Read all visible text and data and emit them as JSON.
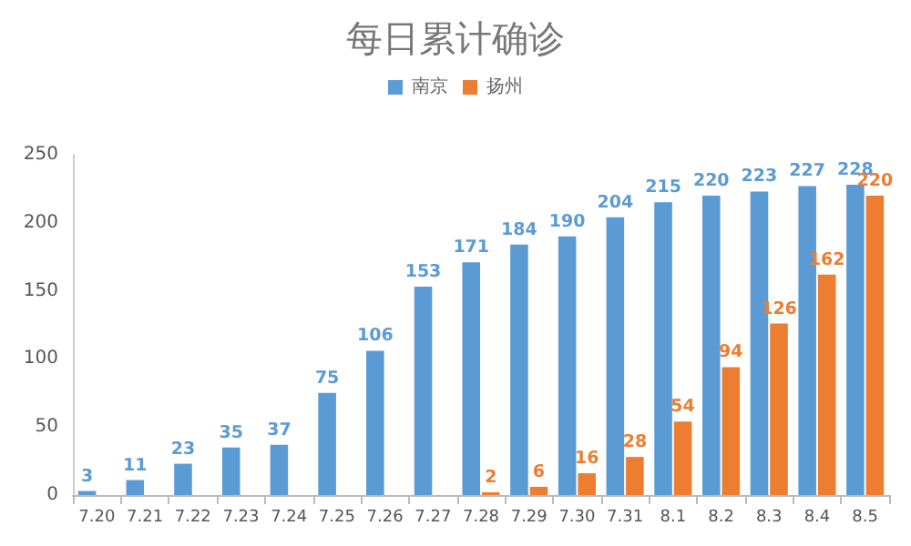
{
  "chart_data": {
    "type": "bar",
    "title": "每日累计确诊",
    "categories": [
      "7.20",
      "7.21",
      "7.22",
      "7.23",
      "7.24",
      "7.25",
      "7.26",
      "7.27",
      "7.28",
      "7.29",
      "7.30",
      "7.31",
      "8.1",
      "8.2",
      "8.3",
      "8.4",
      "8.5"
    ],
    "series": [
      {
        "name": "南京",
        "color": "#5b9bd5",
        "values": [
          3,
          11,
          23,
          35,
          37,
          75,
          106,
          153,
          171,
          184,
          190,
          204,
          215,
          220,
          223,
          227,
          228
        ]
      },
      {
        "name": "扬州",
        "color": "#ed7d31",
        "values": [
          null,
          null,
          null,
          null,
          null,
          null,
          null,
          null,
          2,
          6,
          16,
          28,
          54,
          94,
          126,
          162,
          220
        ]
      }
    ],
    "ylim": [
      0,
      250
    ],
    "yticks": [
      0,
      50,
      100,
      150,
      200,
      250
    ],
    "grid": false,
    "legend": "top",
    "data_labels": true
  }
}
